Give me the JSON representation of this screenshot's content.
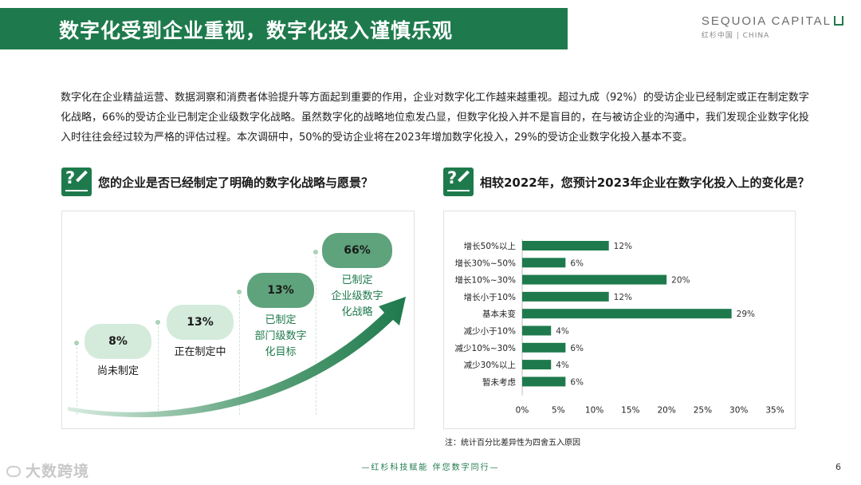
{
  "header": {
    "title": "数字化受到企业重视，数字化投入谨慎乐观",
    "logo_line1": "SEQUOIA CAPITAL",
    "logo_line2": "红杉中国 | CHINA"
  },
  "intro": "数字化在企业精益运营、数据洞察和消费者体验提升等方面起到重要的作用，企业对数字化工作越来越重视。超过九成（92%）的受访企业已经制定或正在制定数字化战略，66%的受访企业已制定企业级数字化战略。虽然数字化的战略地位愈发凸显，但数字化投入并不是盲目的，在与被访企业的沟通中，我们发现企业数字化投入时往往会经过较为严格的评估过程。本次调研中，50%的受访企业将在2023年增加数字化投入，29%的受访企业数字化投入基本不变。",
  "left": {
    "question": "您的企业是否已经制定了明确的数字化战略与愿景？",
    "stages": [
      {
        "value": "8%",
        "label": "尚未制定",
        "color": "#d4ebdc",
        "text_color": "#1a1a1a"
      },
      {
        "value": "13%",
        "label": "正在制定中",
        "color": "#d4ebdc",
        "text_color": "#1a1a1a"
      },
      {
        "value": "13%",
        "label": "已制定\n部门级数字\n化目标",
        "color": "#5fa37d",
        "text_color": "#1e7a4c"
      },
      {
        "value": "66%",
        "label": "已制定\n企业级数字\n化战略",
        "color": "#5fa37d",
        "text_color": "#1e7a4c"
      }
    ]
  },
  "right": {
    "question": "相较2022年，您预计2023年企业在数字化投入上的变化是？",
    "note": "注：统计百分比差异性为四舍五入原因"
  },
  "chart_data": {
    "type": "bar",
    "orientation": "horizontal",
    "categories": [
      "增长50%以上",
      "增长30%~50%",
      "增长10%~30%",
      "增长小于10%",
      "基本未变",
      "减少小于10%",
      "减少10%~30%",
      "减少30%以上",
      "暂未考虑"
    ],
    "values": [
      12,
      6,
      20,
      12,
      29,
      4,
      6,
      4,
      6
    ],
    "value_labels": [
      "12%",
      "6%",
      "20%",
      "12%",
      "29%",
      "4%",
      "6%",
      "4%",
      "6%"
    ],
    "xlim": [
      0,
      35
    ],
    "xticks": [
      "0%",
      "5%",
      "10%",
      "15%",
      "20%",
      "25%",
      "30%",
      "35%"
    ],
    "bar_color": "#1e7a4c",
    "grid": false
  },
  "footer": {
    "slogan": "—红杉科技赋能    伴您数字同行—",
    "page": "6",
    "watermark": "大数跨境"
  }
}
